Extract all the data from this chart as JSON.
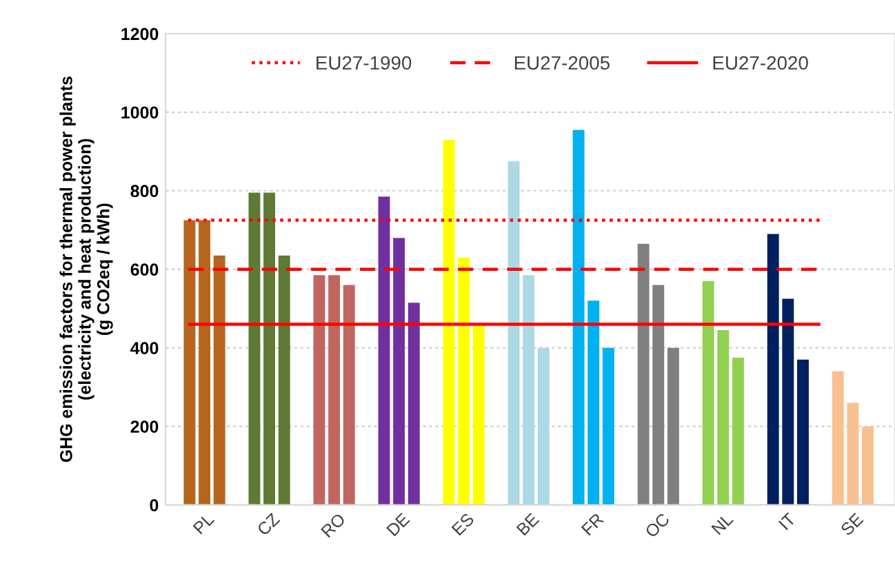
{
  "chart_data": {
    "type": "bar",
    "ylabel": "GHG emission factors for thermal power plants\n(electricity and heat production)\n(g CO2eq / kWh)",
    "categories": [
      "PL",
      "CZ",
      "RO",
      "DE",
      "ES",
      "BE",
      "FR",
      "OC",
      "NL",
      "IT",
      "SE"
    ],
    "series": [
      {
        "values": [
          725,
          795,
          585,
          785,
          930,
          875,
          955,
          665,
          570,
          690,
          340
        ],
        "colors": [
          "#b5651d",
          "#5e7a34",
          "#c0665f",
          "#7030a0",
          "#ffff00",
          "#add8e6",
          "#00b0f0",
          "#808080",
          "#92d050",
          "#002060",
          "#f8c090"
        ]
      },
      {
        "values": [
          725,
          795,
          585,
          680,
          630,
          585,
          520,
          560,
          445,
          525,
          260
        ],
        "colors": [
          "#b5651d",
          "#5e7a34",
          "#c0665f",
          "#7030a0",
          "#ffff00",
          "#add8e6",
          "#00b0f0",
          "#808080",
          "#92d050",
          "#002060",
          "#f8c090"
        ]
      },
      {
        "values": [
          635,
          635,
          560,
          515,
          460,
          400,
          400,
          400,
          375,
          370,
          200
        ],
        "colors": [
          "#b5651d",
          "#5e7a34",
          "#c0665f",
          "#7030a0",
          "#ffff00",
          "#add8e6",
          "#00b0f0",
          "#808080",
          "#92d050",
          "#002060",
          "#f8c090"
        ]
      }
    ],
    "ylim": [
      0,
      1200
    ],
    "yticks": [
      0,
      200,
      400,
      600,
      800,
      1000,
      1200
    ],
    "grid": "y",
    "legend": "top",
    "ref_lines": [
      {
        "axis": "y",
        "value": 725,
        "label": "EU27-1990",
        "color": "#ff0000",
        "line_style": "dotted"
      },
      {
        "axis": "y",
        "value": 600,
        "label": "EU27-2005",
        "color": "#ff0000",
        "line_style": "dashed"
      },
      {
        "axis": "y",
        "value": 460,
        "label": "EU27-2020",
        "color": "#ff0000",
        "line_style": "solid"
      }
    ]
  }
}
